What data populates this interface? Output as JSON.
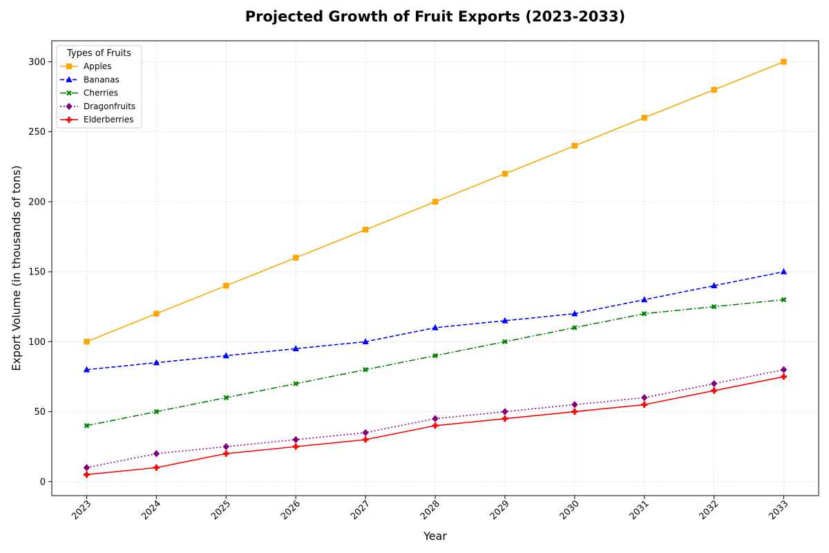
{
  "chart_data": {
    "type": "line",
    "title": "Projected Growth of Fruit Exports (2023-2033)",
    "xlabel": "Year",
    "ylabel": "Export Volume (in thousands of tons)",
    "x": [
      "2023",
      "2024",
      "2025",
      "2026",
      "2027",
      "2028",
      "2029",
      "2030",
      "2031",
      "2032",
      "2033"
    ],
    "ylim": [
      -10,
      315
    ],
    "yticks": [
      0,
      50,
      100,
      150,
      200,
      250,
      300
    ],
    "grid": true,
    "legend": {
      "title": "Types of Fruits",
      "placement": "top-left"
    },
    "series": [
      {
        "name": "Apples",
        "color": "#FFA500",
        "linestyle": "solid",
        "marker": "square",
        "values": [
          100,
          120,
          140,
          160,
          180,
          200,
          220,
          240,
          260,
          280,
          300
        ]
      },
      {
        "name": "Bananas",
        "color": "#0000FF",
        "linestyle": "dashed",
        "marker": "triangle",
        "values": [
          80,
          85,
          90,
          95,
          100,
          110,
          115,
          120,
          130,
          140,
          150
        ]
      },
      {
        "name": "Cherries",
        "color": "#008000",
        "linestyle": "dashdot",
        "marker": "x-filled",
        "values": [
          40,
          50,
          60,
          70,
          80,
          90,
          100,
          110,
          120,
          125,
          130
        ]
      },
      {
        "name": "Dragonfruits",
        "color": "#800080",
        "linestyle": "dotted",
        "marker": "diamond",
        "values": [
          10,
          20,
          25,
          30,
          35,
          45,
          50,
          55,
          60,
          70,
          80
        ]
      },
      {
        "name": "Elderberries",
        "color": "#FF0000",
        "linestyle": "solid",
        "marker": "plus-filled",
        "values": [
          5,
          10,
          20,
          25,
          30,
          40,
          45,
          50,
          55,
          65,
          75
        ]
      }
    ]
  }
}
